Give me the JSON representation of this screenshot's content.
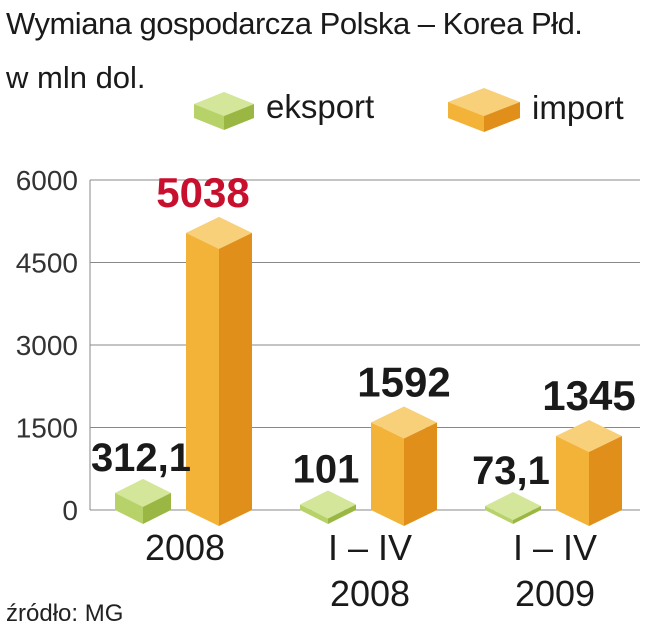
{
  "header": {
    "title": "Wymiana gospodarcza Polska – Korea Płd.",
    "subtitle": "w mln dol."
  },
  "legend": {
    "export_label": "eksport",
    "import_label": "import"
  },
  "source": "źródło: MG",
  "colors": {
    "export_front": "#b8d26a",
    "export_side": "#9ab743",
    "export_top": "#d4e69a",
    "import_front": "#f2b338",
    "import_side": "#e0901a",
    "import_top": "#f8d07a",
    "highlight_label": "#c8102e",
    "grid": "#888888"
  },
  "chart_data": {
    "type": "bar",
    "categories": [
      [
        "2008"
      ],
      [
        "I – IV",
        "2008"
      ],
      [
        "I – IV",
        "2009"
      ]
    ],
    "series": [
      {
        "name": "eksport",
        "values": [
          312.1,
          101,
          73.1
        ],
        "labels": [
          "312,1",
          "101",
          "73,1"
        ]
      },
      {
        "name": "import",
        "values": [
          5038,
          1592,
          1345
        ],
        "labels": [
          "5038",
          "1592",
          "1345"
        ]
      }
    ],
    "yticks": [
      "0",
      "1500",
      "3000",
      "4500",
      "6000"
    ],
    "ylim": [
      0,
      6000
    ],
    "grid": true,
    "highlight": {
      "series": 1,
      "index": 0
    }
  }
}
